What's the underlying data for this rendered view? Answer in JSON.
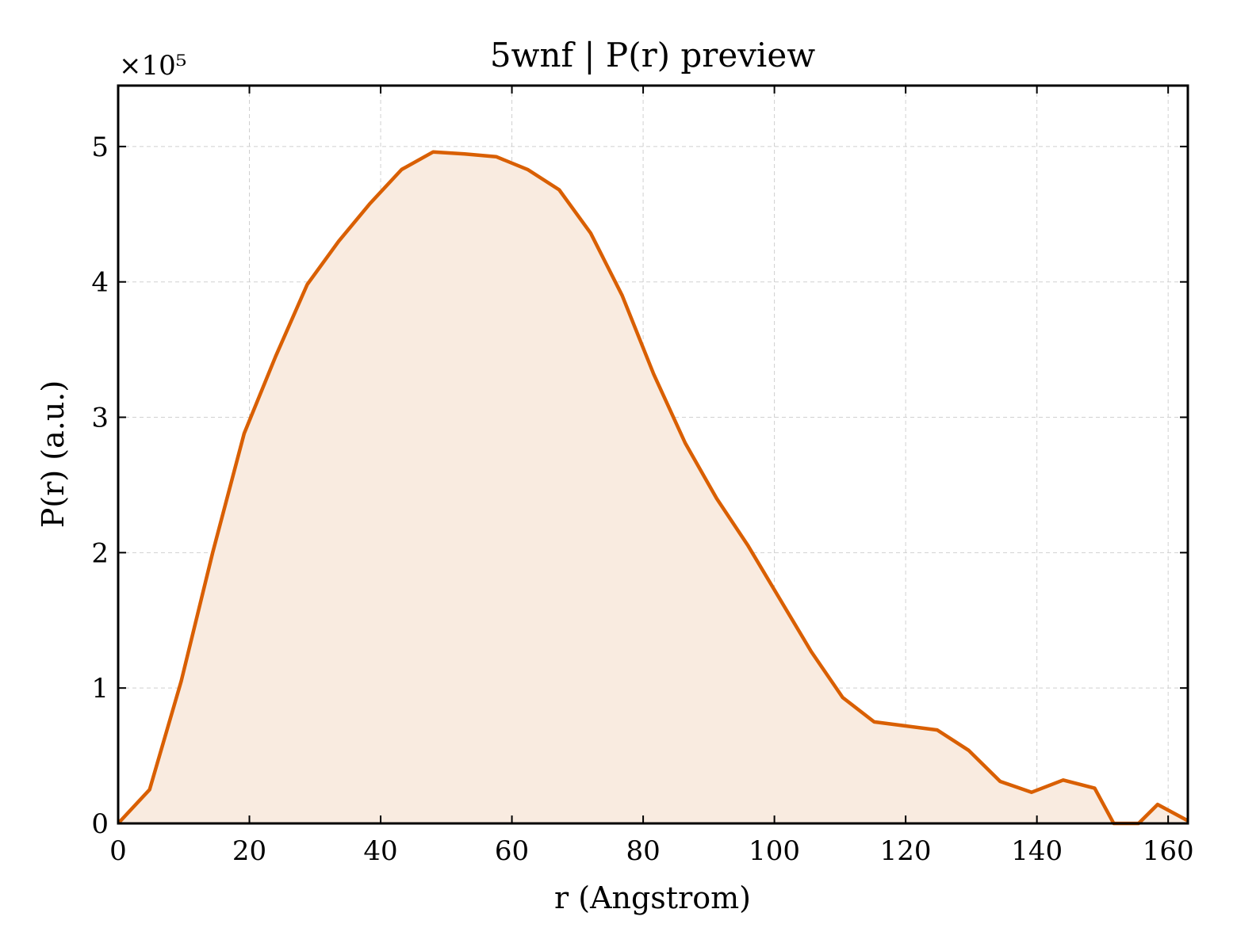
{
  "chart_data": {
    "type": "area",
    "title": "5wnf | P(r) preview",
    "xlabel": "r (Angstrom)",
    "ylabel": "P(r) (a.u.)",
    "y_multiplier_label": "×10⁵",
    "xlim": [
      0,
      163
    ],
    "ylim": [
      0,
      5.45
    ],
    "x_ticks": [
      0,
      20,
      40,
      60,
      80,
      100,
      120,
      140,
      160
    ],
    "y_ticks": [
      0,
      1,
      2,
      3,
      4,
      5
    ],
    "grid": true,
    "line_color": "#d95f02",
    "fill_color": "#f9ebe0",
    "series": [
      {
        "x": [
          0,
          4.8,
          9.6,
          14.4,
          19.2,
          24.0,
          28.8,
          33.6,
          38.4,
          43.2,
          48.0,
          52.8,
          57.6,
          62.4,
          67.2,
          72.0,
          76.8,
          81.6,
          86.4,
          91.2,
          96.0,
          100.8,
          105.6,
          110.4,
          115.2,
          120.0,
          124.8,
          129.6,
          134.4,
          139.2,
          144.0,
          148.8,
          151.7,
          155.5,
          158.4,
          163.0
        ],
        "y": [
          0,
          0.25,
          1.05,
          2.0,
          2.88,
          3.45,
          3.98,
          4.3,
          4.58,
          4.83,
          4.96,
          4.945,
          4.925,
          4.83,
          4.68,
          4.36,
          3.9,
          3.32,
          2.81,
          2.4,
          2.05,
          1.66,
          1.27,
          0.93,
          0.75,
          0.72,
          0.69,
          0.54,
          0.31,
          0.23,
          0.32,
          0.26,
          0.0,
          0.0,
          0.14,
          0.02
        ]
      }
    ]
  }
}
